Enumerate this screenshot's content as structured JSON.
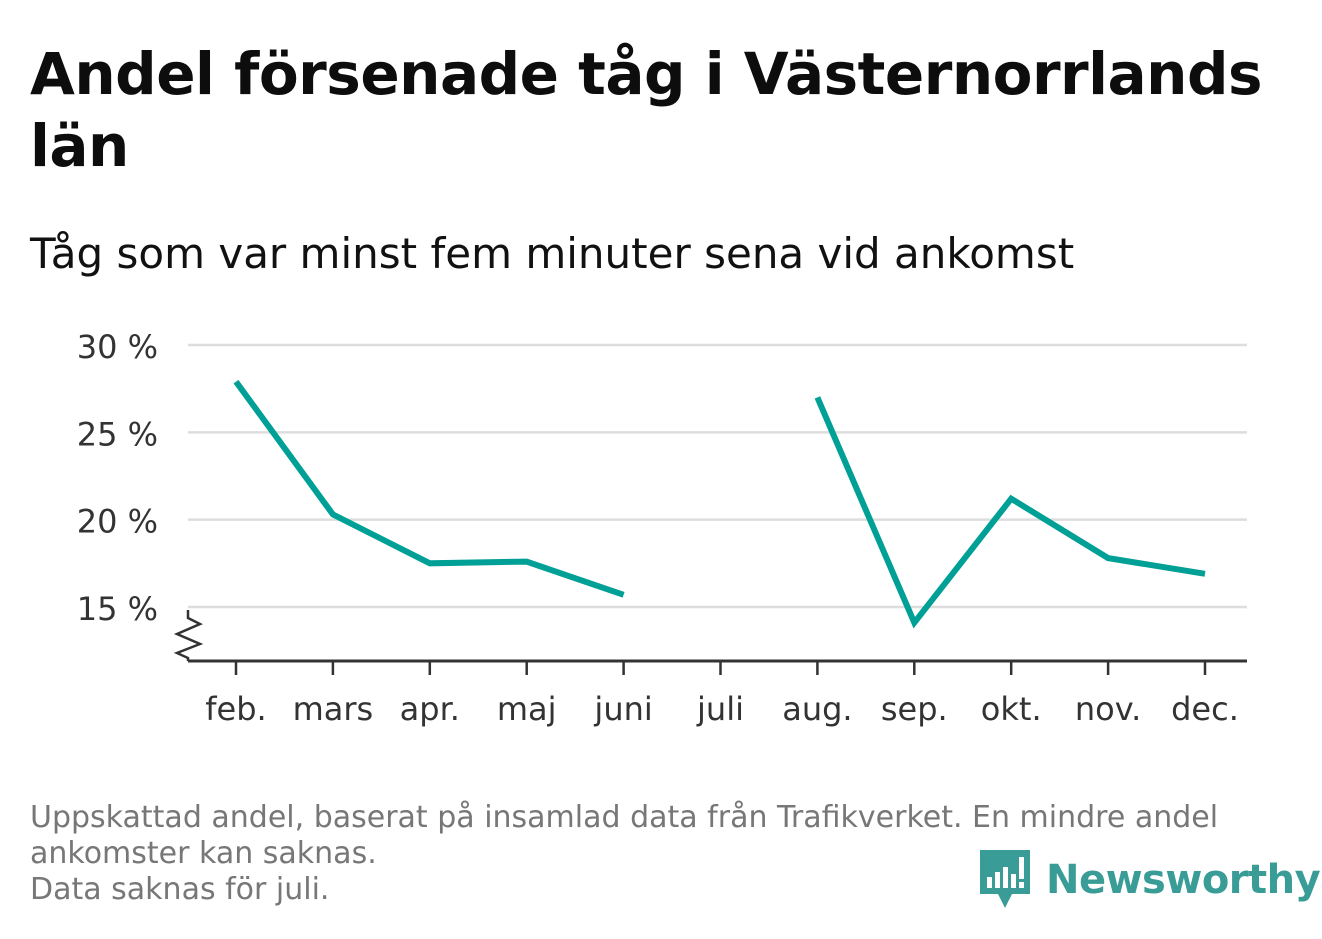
{
  "header": {
    "title": "Andel försenade tåg i Västernorrlands län",
    "subtitle": "Tåg som var minst fem minuter sena vid ankomst"
  },
  "footer": {
    "note_line1": "Uppskattad andel, baserat på insamlad data från Trafikverket. En mindre andel",
    "note_line2": "ankomster kan saknas.",
    "note_line3": "Data saknas för juli.",
    "logo_text": "Newsworthy",
    "logo_icon": "newsworthy-logo-icon"
  },
  "colors": {
    "line": "#00a096",
    "grid": "#dddddd",
    "axis": "#333333",
    "logo": "#3a9c96",
    "footnote": "#777777"
  },
  "chart_data": {
    "type": "line",
    "categories": [
      "feb.",
      "mars",
      "apr.",
      "maj",
      "juni",
      "juli",
      "aug.",
      "sep.",
      "okt.",
      "nov.",
      "dec."
    ],
    "series": [
      {
        "values": [
          27.9,
          20.3,
          17.5,
          17.6,
          15.7,
          null,
          27.0,
          14.1,
          21.2,
          17.8,
          16.9
        ]
      }
    ],
    "y_ticks": [
      15,
      20,
      25,
      30
    ],
    "y_tick_labels": [
      "15 %",
      "20 %",
      "25 %",
      "30 %"
    ],
    "ylim": [
      15,
      30
    ],
    "y_axis_break": true,
    "grid": "horizontal",
    "xlabel": "",
    "ylabel": ""
  }
}
